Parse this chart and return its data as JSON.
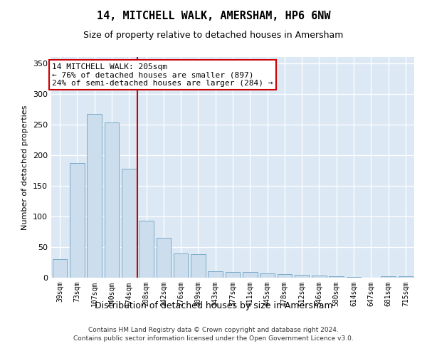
{
  "title": "14, MITCHELL WALK, AMERSHAM, HP6 6NW",
  "subtitle": "Size of property relative to detached houses in Amersham",
  "xlabel": "Distribution of detached houses by size in Amersham",
  "ylabel": "Number of detached properties",
  "bar_color": "#ccdded",
  "bar_edge_color": "#7aaac8",
  "background_color": "#dce9f5",
  "vline_color": "#cc0000",
  "annotation_line1": "14 MITCHELL WALK: 205sqm",
  "annotation_line2": "← 76% of detached houses are smaller (897)",
  "annotation_line3": "24% of semi-detached houses are larger (284) →",
  "annotation_box_color": "#ffffff",
  "annotation_box_edge": "#cc0000",
  "footer1": "Contains HM Land Registry data © Crown copyright and database right 2024.",
  "footer2": "Contains public sector information licensed under the Open Government Licence v3.0.",
  "categories": [
    "39sqm",
    "73sqm",
    "107sqm",
    "140sqm",
    "174sqm",
    "208sqm",
    "242sqm",
    "276sqm",
    "309sqm",
    "343sqm",
    "377sqm",
    "411sqm",
    "445sqm",
    "478sqm",
    "512sqm",
    "546sqm",
    "580sqm",
    "614sqm",
    "647sqm",
    "681sqm",
    "715sqm"
  ],
  "values": [
    30,
    187,
    267,
    253,
    178,
    93,
    65,
    39,
    38,
    11,
    9,
    9,
    7,
    6,
    5,
    4,
    2,
    1,
    0,
    2,
    2
  ],
  "vline_index": 5,
  "ylim": [
    0,
    360
  ],
  "yticks": [
    0,
    50,
    100,
    150,
    200,
    250,
    300,
    350
  ]
}
